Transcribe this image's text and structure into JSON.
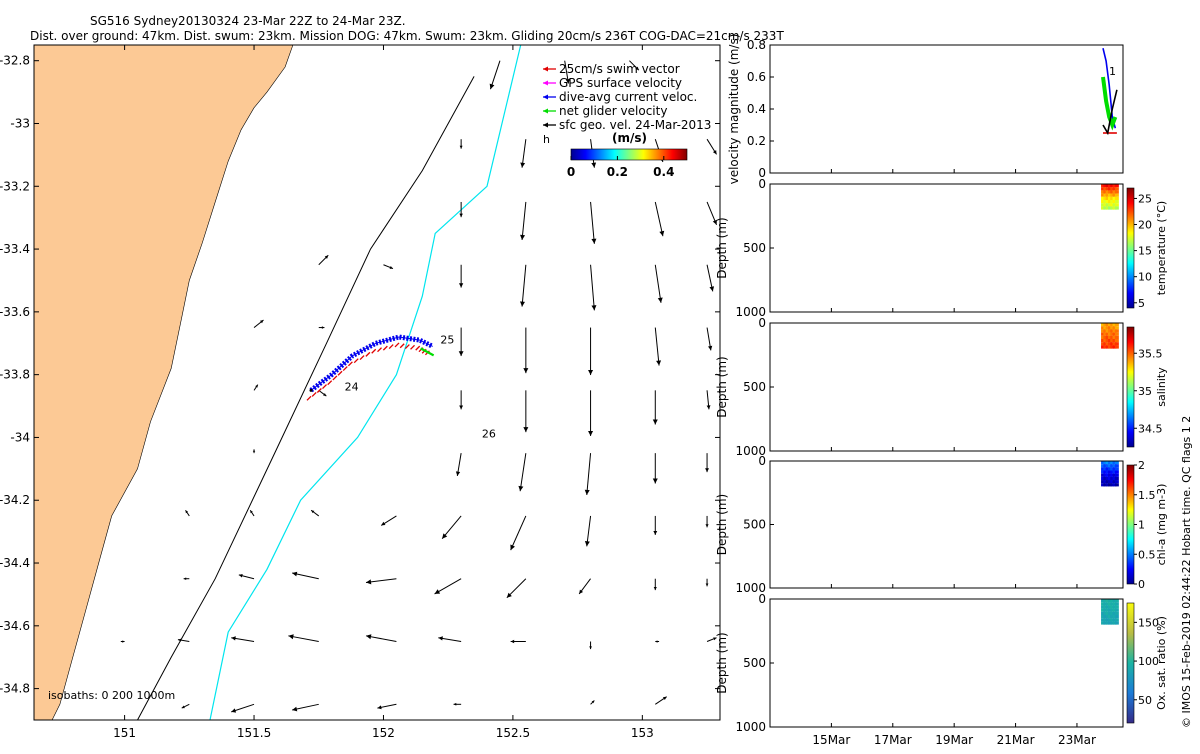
{
  "title": {
    "line1": "SG516 Sydney20130324 23-Mar 22Z to 24-Mar 23Z.",
    "line2": "Dist. over ground: 47km. Dist. swum: 23km. Mission DOG: 47km. Swum: 23km. Gliding 20cm/s 236T COG-DAC=21cm/s 233T"
  },
  "colors": {
    "land": "#fcc995",
    "isobath_cyan": "#00e5ee",
    "swim": "#e00000",
    "gps": "#ff00ff",
    "dac": "#0000ee",
    "net": "#00dd00"
  },
  "chart_data": [
    {
      "id": "map",
      "type": "scatter",
      "xlim": [
        150.65,
        153.3
      ],
      "ylim": [
        -34.9,
        -32.75
      ],
      "x_ticks": [
        "151",
        "151.5",
        "152",
        "152.5",
        "153"
      ],
      "x_tick_values": [
        151,
        151.5,
        152,
        152.5,
        153
      ],
      "y_ticks": [
        "-32.8",
        "-33",
        "-33.2",
        "-33.4",
        "-33.6",
        "-33.8",
        "-34",
        "-34.2",
        "-34.4",
        "-34.6",
        "-34.8"
      ],
      "y_tick_values": [
        -32.8,
        -33,
        -33.2,
        -33.4,
        -33.6,
        -33.8,
        -34,
        -34.2,
        -34.4,
        -34.6,
        -34.8
      ],
      "legend": [
        {
          "label": "25cm/s swim vector",
          "color": "#e00000"
        },
        {
          "label": "GPS surface velocity",
          "color": "#ff00ff"
        },
        {
          "label": "dive-avg current veloc.",
          "color": "#0000ee"
        },
        {
          "label": "net glider velocity",
          "color": "#00dd00"
        },
        {
          "label": "sfc geo. vel. 24-Mar-2013",
          "color": "#000000"
        }
      ],
      "legend_placement": "top-right",
      "legend_extra": "h",
      "colorbar": {
        "label": "(m/s)",
        "ticks": [
          "0",
          "0.2",
          "0.4"
        ],
        "range": [
          0,
          0.5
        ]
      },
      "isobaths_label": "isobaths: 0   200  1000m",
      "track_labels": [
        {
          "text": "24",
          "lon": 151.85,
          "lat": -33.85
        },
        {
          "text": "25",
          "lon": 152.22,
          "lat": -33.7
        },
        {
          "text": "26",
          "lon": 152.38,
          "lat": -34.0
        }
      ],
      "track": [
        {
          "lon": 151.72,
          "lat": -33.85
        },
        {
          "lon": 151.8,
          "lat": -33.8
        },
        {
          "lon": 151.88,
          "lat": -33.74
        },
        {
          "lon": 151.97,
          "lat": -33.7
        },
        {
          "lon": 152.06,
          "lat": -33.68
        },
        {
          "lon": 152.14,
          "lat": -33.69
        },
        {
          "lon": 152.19,
          "lat": -33.71
        }
      ],
      "isobath_200": [
        {
          "lon": 152.53,
          "lat": -32.75
        },
        {
          "lon": 152.4,
          "lat": -33.2
        },
        {
          "lon": 152.2,
          "lat": -33.35
        },
        {
          "lon": 152.15,
          "lat": -33.55
        },
        {
          "lon": 152.05,
          "lat": -33.8
        },
        {
          "lon": 151.9,
          "lat": -34.0
        },
        {
          "lon": 151.68,
          "lat": -34.2
        },
        {
          "lon": 151.55,
          "lat": -34.42
        },
        {
          "lon": 151.4,
          "lat": -34.62
        },
        {
          "lon": 151.33,
          "lat": -34.9
        }
      ],
      "isobath_1000": [
        {
          "lon": 152.35,
          "lat": -32.85
        },
        {
          "lon": 152.15,
          "lat": -33.15
        },
        {
          "lon": 151.95,
          "lat": -33.4
        },
        {
          "lon": 151.78,
          "lat": -33.7
        },
        {
          "lon": 151.58,
          "lat": -34.05
        },
        {
          "lon": 151.35,
          "lat": -34.45
        },
        {
          "lon": 151.18,
          "lat": -34.7
        },
        {
          "lon": 151.05,
          "lat": -34.9
        }
      ],
      "coast": [
        {
          "lon": 150.65,
          "lat": -32.75
        },
        {
          "lon": 151.65,
          "lat": -32.75
        },
        {
          "lon": 151.62,
          "lat": -32.82
        },
        {
          "lon": 151.55,
          "lat": -32.9
        },
        {
          "lon": 151.5,
          "lat": -32.95
        },
        {
          "lon": 151.45,
          "lat": -33.02
        },
        {
          "lon": 151.4,
          "lat": -33.12
        },
        {
          "lon": 151.35,
          "lat": -33.25
        },
        {
          "lon": 151.3,
          "lat": -33.38
        },
        {
          "lon": 151.25,
          "lat": -33.5
        },
        {
          "lon": 151.22,
          "lat": -33.62
        },
        {
          "lon": 151.18,
          "lat": -33.78
        },
        {
          "lon": 151.1,
          "lat": -33.95
        },
        {
          "lon": 151.05,
          "lat": -34.1
        },
        {
          "lon": 150.95,
          "lat": -34.25
        },
        {
          "lon": 150.9,
          "lat": -34.4
        },
        {
          "lon": 150.85,
          "lat": -34.55
        },
        {
          "lon": 150.8,
          "lat": -34.7
        },
        {
          "lon": 150.75,
          "lat": -34.85
        },
        {
          "lon": 150.72,
          "lat": -34.9
        },
        {
          "lon": 150.65,
          "lat": -34.9
        }
      ],
      "current_vectors": [
        {
          "lon": 152.45,
          "lat": -32.8,
          "u": -0.05,
          "v": -0.15
        },
        {
          "lon": 152.7,
          "lat": -32.8,
          "u": 0.02,
          "v": -0.12
        },
        {
          "lon": 152.95,
          "lat": -32.8,
          "u": 0.05,
          "v": -0.05
        },
        {
          "lon": 152.3,
          "lat": -33.05,
          "u": 0.0,
          "v": -0.05
        },
        {
          "lon": 152.55,
          "lat": -33.05,
          "u": -0.02,
          "v": -0.15
        },
        {
          "lon": 152.8,
          "lat": -33.05,
          "u": 0.02,
          "v": -0.15
        },
        {
          "lon": 153.05,
          "lat": -33.05,
          "u": 0.04,
          "v": -0.12
        },
        {
          "lon": 153.25,
          "lat": -33.05,
          "u": 0.05,
          "v": -0.08
        },
        {
          "lon": 152.3,
          "lat": -33.25,
          "u": 0.0,
          "v": -0.08
        },
        {
          "lon": 152.55,
          "lat": -33.25,
          "u": -0.02,
          "v": -0.2
        },
        {
          "lon": 152.8,
          "lat": -33.25,
          "u": 0.02,
          "v": -0.22
        },
        {
          "lon": 153.05,
          "lat": -33.25,
          "u": 0.04,
          "v": -0.18
        },
        {
          "lon": 153.25,
          "lat": -33.25,
          "u": 0.05,
          "v": -0.12
        },
        {
          "lon": 151.75,
          "lat": -33.45,
          "u": 0.05,
          "v": 0.05
        },
        {
          "lon": 152.0,
          "lat": -33.45,
          "u": 0.05,
          "v": -0.02
        },
        {
          "lon": 152.3,
          "lat": -33.45,
          "u": 0.0,
          "v": -0.12
        },
        {
          "lon": 152.55,
          "lat": -33.45,
          "u": -0.02,
          "v": -0.22
        },
        {
          "lon": 152.8,
          "lat": -33.45,
          "u": 0.02,
          "v": -0.24
        },
        {
          "lon": 153.05,
          "lat": -33.45,
          "u": 0.03,
          "v": -0.2
        },
        {
          "lon": 153.25,
          "lat": -33.45,
          "u": 0.03,
          "v": -0.14
        },
        {
          "lon": 151.5,
          "lat": -33.65,
          "u": 0.05,
          "v": 0.04
        },
        {
          "lon": 151.75,
          "lat": -33.65,
          "u": 0.03,
          "v": 0.0
        },
        {
          "lon": 152.3,
          "lat": -33.65,
          "u": 0.0,
          "v": -0.15
        },
        {
          "lon": 152.55,
          "lat": -33.65,
          "u": 0.0,
          "v": -0.24
        },
        {
          "lon": 152.8,
          "lat": -33.65,
          "u": 0.0,
          "v": -0.25
        },
        {
          "lon": 153.05,
          "lat": -33.65,
          "u": 0.02,
          "v": -0.2
        },
        {
          "lon": 153.25,
          "lat": -33.65,
          "u": 0.02,
          "v": -0.12
        },
        {
          "lon": 151.5,
          "lat": -33.85,
          "u": 0.02,
          "v": 0.03
        },
        {
          "lon": 151.75,
          "lat": -33.85,
          "u": 0.04,
          "v": -0.03
        },
        {
          "lon": 152.3,
          "lat": -33.85,
          "u": 0.0,
          "v": -0.1
        },
        {
          "lon": 152.55,
          "lat": -33.85,
          "u": 0.0,
          "v": -0.22
        },
        {
          "lon": 152.8,
          "lat": -33.85,
          "u": 0.0,
          "v": -0.24
        },
        {
          "lon": 153.05,
          "lat": -33.85,
          "u": 0.0,
          "v": -0.18
        },
        {
          "lon": 153.25,
          "lat": -33.85,
          "u": 0.01,
          "v": -0.1
        },
        {
          "lon": 151.5,
          "lat": -34.05,
          "u": 0.0,
          "v": 0.02
        },
        {
          "lon": 151.75,
          "lat": -34.05,
          "u": 0.0,
          "v": 0.0
        },
        {
          "lon": 152.3,
          "lat": -34.05,
          "u": -0.02,
          "v": -0.12
        },
        {
          "lon": 152.55,
          "lat": -34.05,
          "u": -0.03,
          "v": -0.2
        },
        {
          "lon": 152.8,
          "lat": -34.05,
          "u": -0.02,
          "v": -0.22
        },
        {
          "lon": 153.05,
          "lat": -34.05,
          "u": 0.0,
          "v": -0.16
        },
        {
          "lon": 153.25,
          "lat": -34.05,
          "u": 0.0,
          "v": -0.1
        },
        {
          "lon": 151.25,
          "lat": -34.25,
          "u": -0.02,
          "v": 0.03
        },
        {
          "lon": 151.5,
          "lat": -34.25,
          "u": -0.02,
          "v": 0.03
        },
        {
          "lon": 151.75,
          "lat": -34.25,
          "u": -0.04,
          "v": 0.03
        },
        {
          "lon": 152.05,
          "lat": -34.25,
          "u": -0.08,
          "v": -0.05
        },
        {
          "lon": 152.3,
          "lat": -34.25,
          "u": -0.1,
          "v": -0.12
        },
        {
          "lon": 152.55,
          "lat": -34.25,
          "u": -0.08,
          "v": -0.18
        },
        {
          "lon": 152.8,
          "lat": -34.25,
          "u": -0.02,
          "v": -0.16
        },
        {
          "lon": 153.05,
          "lat": -34.25,
          "u": 0.0,
          "v": -0.1
        },
        {
          "lon": 153.25,
          "lat": -34.25,
          "u": 0.0,
          "v": -0.06
        },
        {
          "lon": 151.25,
          "lat": -34.45,
          "u": -0.03,
          "v": 0.0
        },
        {
          "lon": 151.5,
          "lat": -34.45,
          "u": -0.08,
          "v": 0.02
        },
        {
          "lon": 151.75,
          "lat": -34.45,
          "u": -0.14,
          "v": 0.03
        },
        {
          "lon": 152.05,
          "lat": -34.45,
          "u": -0.16,
          "v": -0.02
        },
        {
          "lon": 152.3,
          "lat": -34.45,
          "u": -0.14,
          "v": -0.08
        },
        {
          "lon": 152.55,
          "lat": -34.45,
          "u": -0.1,
          "v": -0.1
        },
        {
          "lon": 152.8,
          "lat": -34.45,
          "u": -0.06,
          "v": -0.08
        },
        {
          "lon": 153.05,
          "lat": -34.45,
          "u": 0.0,
          "v": -0.06
        },
        {
          "lon": 153.25,
          "lat": -34.45,
          "u": 0.0,
          "v": -0.04
        },
        {
          "lon": 151.0,
          "lat": -34.65,
          "u": -0.02,
          "v": 0.0
        },
        {
          "lon": 151.25,
          "lat": -34.65,
          "u": -0.06,
          "v": 0.01
        },
        {
          "lon": 151.5,
          "lat": -34.65,
          "u": -0.12,
          "v": 0.02
        },
        {
          "lon": 151.75,
          "lat": -34.65,
          "u": -0.16,
          "v": 0.03
        },
        {
          "lon": 152.05,
          "lat": -34.65,
          "u": -0.16,
          "v": 0.03
        },
        {
          "lon": 152.3,
          "lat": -34.65,
          "u": -0.12,
          "v": 0.02
        },
        {
          "lon": 152.55,
          "lat": -34.65,
          "u": -0.08,
          "v": 0.0
        },
        {
          "lon": 152.8,
          "lat": -34.65,
          "u": 0.0,
          "v": -0.04
        },
        {
          "lon": 153.05,
          "lat": -34.65,
          "u": 0.02,
          "v": 0.0
        },
        {
          "lon": 153.25,
          "lat": -34.65,
          "u": 0.05,
          "v": 0.02
        },
        {
          "lon": 151.25,
          "lat": -34.85,
          "u": -0.04,
          "v": -0.02
        },
        {
          "lon": 151.5,
          "lat": -34.85,
          "u": -0.12,
          "v": -0.04
        },
        {
          "lon": 151.75,
          "lat": -34.85,
          "u": -0.14,
          "v": -0.03
        },
        {
          "lon": 152.05,
          "lat": -34.85,
          "u": -0.1,
          "v": -0.02
        },
        {
          "lon": 152.3,
          "lat": -34.85,
          "u": -0.04,
          "v": 0.0
        },
        {
          "lon": 152.55,
          "lat": -34.85,
          "u": 0.0,
          "v": 0.0
        },
        {
          "lon": 152.8,
          "lat": -34.85,
          "u": 0.02,
          "v": 0.02
        },
        {
          "lon": 153.05,
          "lat": -34.85,
          "u": 0.06,
          "v": 0.04
        }
      ]
    },
    {
      "id": "velocity",
      "type": "line",
      "ylabel": "velocity magnitude (m/s)",
      "ylim": [
        0,
        0.8
      ],
      "y_ticks": [
        "0",
        "0.2",
        "0.4",
        "0.6",
        "0.8"
      ],
      "y_tick_values": [
        0,
        0.2,
        0.4,
        0.6,
        0.8
      ],
      "right_tick": "1",
      "series": [
        {
          "color": "#0000ee",
          "x": [
            23.85,
            23.95,
            24.05,
            24.15,
            24.25
          ],
          "values": [
            0.78,
            0.7,
            0.55,
            0.35,
            0.28
          ]
        },
        {
          "color": "#00dd00",
          "x": [
            23.85,
            23.95,
            24.05,
            24.15,
            24.25
          ],
          "values": [
            0.6,
            0.45,
            0.35,
            0.3,
            0.35
          ]
        },
        {
          "color": "#e00000",
          "x": [
            23.85,
            24.3
          ],
          "values": [
            0.25,
            0.25
          ]
        },
        {
          "color": "#000000",
          "x": [
            23.85,
            24.0,
            24.15,
            24.3
          ],
          "values": [
            0.3,
            0.25,
            0.4,
            0.52
          ]
        }
      ]
    },
    {
      "id": "temperature",
      "type": "heatmap",
      "ylabel": "Depth (m)",
      "ylim": [
        1000,
        0
      ],
      "y_ticks": [
        "0",
        "500",
        "1000"
      ],
      "y_tick_values": [
        0,
        500,
        1000
      ],
      "cbar_label": "temperature (°C)",
      "cbar_range": [
        4,
        27
      ],
      "cbar_ticks": [
        "5",
        "10",
        "15",
        "20",
        "25"
      ],
      "cbar_tick_values": [
        5,
        10,
        15,
        20,
        25
      ],
      "profile": [
        {
          "depth": 0,
          "value": 24
        },
        {
          "depth": 100,
          "value": 19
        },
        {
          "depth": 200,
          "value": 16
        }
      ]
    },
    {
      "id": "salinity",
      "type": "heatmap",
      "ylabel": "Depth (m)",
      "ylim": [
        1000,
        0
      ],
      "y_ticks": [
        "0",
        "500",
        "1000"
      ],
      "y_tick_values": [
        0,
        500,
        1000
      ],
      "cbar_label": "salinity",
      "cbar_range": [
        34.25,
        35.85
      ],
      "cbar_ticks": [
        "34.5",
        "35",
        "35.5"
      ],
      "cbar_tick_values": [
        34.5,
        35,
        35.5
      ],
      "profile": [
        {
          "depth": 0,
          "value": 35.4
        },
        {
          "depth": 100,
          "value": 35.5
        },
        {
          "depth": 200,
          "value": 35.6
        }
      ]
    },
    {
      "id": "chla",
      "type": "heatmap",
      "ylabel": "Depth (m)",
      "ylim": [
        1000,
        0
      ],
      "y_ticks": [
        "0",
        "500",
        "1000"
      ],
      "y_tick_values": [
        0,
        500,
        1000
      ],
      "cbar_label": "chl-a (mg m-3)",
      "cbar_range": [
        0,
        2
      ],
      "cbar_ticks": [
        "0",
        "0.5",
        "1",
        "1.5",
        "2"
      ],
      "cbar_tick_values": [
        0,
        0.5,
        1,
        1.5,
        2
      ],
      "profile": [
        {
          "depth": 0,
          "value": 0.5
        },
        {
          "depth": 100,
          "value": 0.2
        },
        {
          "depth": 200,
          "value": 0.05
        }
      ]
    },
    {
      "id": "oxsat",
      "type": "heatmap",
      "ylabel": "Depth (m)",
      "ylim": [
        1000,
        0
      ],
      "y_ticks": [
        "0",
        "500",
        "1000"
      ],
      "y_tick_values": [
        0,
        500,
        1000
      ],
      "cbar_label": "Ox. sat. ratio (%)",
      "cbar_range": [
        20,
        175
      ],
      "cbar_ticks": [
        "50",
        "100",
        "150"
      ],
      "cbar_tick_values": [
        50,
        100,
        150
      ],
      "x_ticks": [
        "15Mar",
        "17Mar",
        "19Mar",
        "21Mar",
        "23Mar"
      ],
      "x_tick_values": [
        15,
        17,
        19,
        21,
        23
      ],
      "profile": [
        {
          "depth": 0,
          "value": 95
        },
        {
          "depth": 100,
          "value": 90
        },
        {
          "depth": 200,
          "value": 85
        }
      ]
    }
  ],
  "time_axis": {
    "xlim": [
      13,
      24.5
    ],
    "data_start": 23.85,
    "data_end": 24.3
  },
  "footer": "© IMOS 15-Feb-2019 02:44:22 Hobart time. QC flags 1  2"
}
